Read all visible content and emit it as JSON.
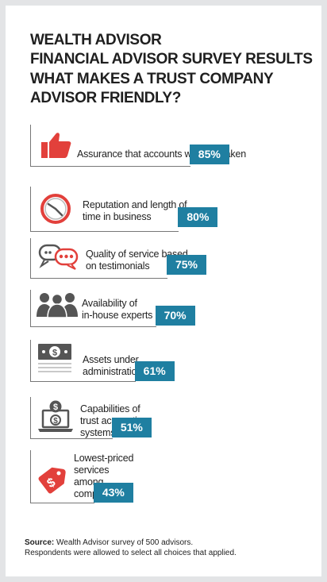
{
  "header": {
    "line1": "WEALTH ADVISOR",
    "line2": "FINANCIAL ADVISOR SURVEY RESULTS",
    "line3": "WHAT MAKES A TRUST COMPANY",
    "line4": "ADVISOR FRIENDLY?"
  },
  "chart_data": {
    "type": "bar",
    "title": "WHAT MAKES A TRUST COMPANY ADVISOR FRIENDLY?",
    "categories": [
      "Assurance that accounts won't be taken",
      "Reputation and length of time in business",
      "Quality of service based on testimonials",
      "Availability of in-house experts",
      "Assets under administration",
      "Capabilities of trust accounting systems",
      "Lowest-priced services among competitors"
    ],
    "values": [
      85,
      80,
      75,
      70,
      61,
      51,
      43
    ],
    "unit": "%",
    "items": [
      {
        "lines": [
          "Assurance that accounts won't be taken"
        ],
        "pct": "85%",
        "icon": "thumbs-up-icon"
      },
      {
        "lines": [
          "Reputation and length of",
          "time in business"
        ],
        "pct": "80%",
        "icon": "clock-icon"
      },
      {
        "lines": [
          "Quality of service based",
          "on testimonials"
        ],
        "pct": "75%",
        "icon": "speech-bubbles-icon"
      },
      {
        "lines": [
          "Availability of",
          "in-house experts"
        ],
        "pct": "70%",
        "icon": "people-icon"
      },
      {
        "lines": [
          "Assets under",
          "administration"
        ],
        "pct": "61%",
        "icon": "money-icon"
      },
      {
        "lines": [
          "Capabilities of",
          "trust accounting",
          "systems"
        ],
        "pct": "51%",
        "icon": "laptop-dollar-icon"
      },
      {
        "lines": [
          "Lowest-priced",
          "services",
          "among",
          "competitors"
        ],
        "pct": "43%",
        "icon": "price-tag-icon"
      }
    ],
    "colors": {
      "bar": "#1f7fa1",
      "accent": "#e2403b",
      "icon_gray": "#555555"
    }
  },
  "footer": {
    "source_label": "Source:",
    "source_text": " Wealth Advisor survey of 500 advisors.",
    "note": "Respondents were allowed to select all choices that applied."
  }
}
